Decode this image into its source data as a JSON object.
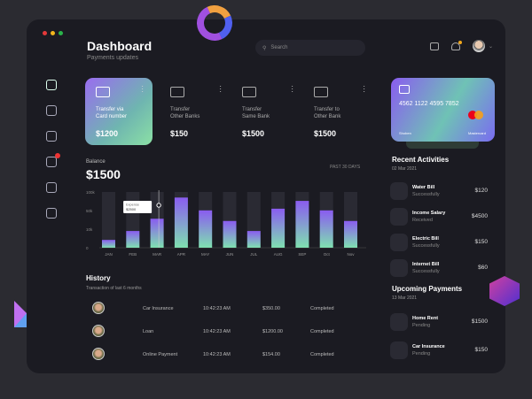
{
  "header": {
    "title": "Dashboard",
    "subtitle": "Payments updates",
    "search_placeholder": "Search"
  },
  "colors": {
    "accent": "#8a5cf0",
    "accent2": "#7fe0b0",
    "bg": "#1b1b22"
  },
  "sidebar": {
    "items": [
      {
        "icon": "home-icon"
      },
      {
        "icon": "monitor-icon"
      },
      {
        "icon": "clipboard-icon"
      },
      {
        "icon": "messages-icon",
        "badge": true
      },
      {
        "icon": "trophy-icon"
      },
      {
        "icon": "document-icon"
      }
    ]
  },
  "transfers": [
    {
      "label1": "Transfer via",
      "label2": "Card number",
      "amount": "$1200",
      "icon": "credit-card-icon"
    },
    {
      "label1": "Transfer",
      "label2": "Other Banks",
      "amount": "$150",
      "icon": "arrows-transfer-icon"
    },
    {
      "label1": "Transfer",
      "label2": "Same Bank",
      "amount": "$1500",
      "icon": "bank-icon"
    },
    {
      "label1": "Transfer to",
      "label2": "Other Bank",
      "amount": "$1500",
      "icon": "document-bank-icon"
    }
  ],
  "balance": {
    "label": "Balance",
    "amount": "$1500",
    "period": "PAST 30 DAYS"
  },
  "chart_data": {
    "type": "bar",
    "categories": [
      "JAN",
      "FEB",
      "MAR",
      "APR",
      "MAY",
      "JUN",
      "JUL",
      "AUG",
      "SEP",
      "Oct",
      "Nov"
    ],
    "values": [
      14,
      30,
      52,
      90,
      67,
      48,
      30,
      70,
      84,
      67,
      48
    ],
    "yticks": [
      "100k",
      "50k",
      "10k",
      "0"
    ],
    "ylim": [
      0,
      100
    ],
    "tooltip": {
      "label": "Expense",
      "value": "$2500",
      "category": "MAR"
    }
  },
  "history": {
    "title": "History",
    "subtitle": "Transaction of last 6 months",
    "rows": [
      {
        "name": "Car Insurance",
        "time": "10:42:23 AM",
        "amount": "$350.00",
        "status": "Completed"
      },
      {
        "name": "Loan",
        "time": "10:42:23 AM",
        "amount": "$1200.00",
        "status": "Completed"
      },
      {
        "name": "Online Payment",
        "time": "10:42:23 AM",
        "amount": "$154.00",
        "status": "Completed"
      }
    ]
  },
  "card": {
    "number": "4562 1122 4595 7852",
    "holder": "Shoben",
    "brand": "Mastercard"
  },
  "recent": {
    "title": "Recent Activities",
    "date": "02 Mar 2021",
    "items": [
      {
        "name": "Water Bill",
        "status": "Successfully",
        "amount": "$120",
        "icon": "water-icon"
      },
      {
        "name": "Income Salary",
        "status": "Received",
        "amount": "$4500",
        "icon": "inbox-icon"
      },
      {
        "name": "Electric Bill",
        "status": "Successfully",
        "amount": "$150",
        "icon": "lightning-icon"
      },
      {
        "name": "Internet Bill",
        "status": "Successfully",
        "amount": "$60",
        "icon": "wifi-icon"
      }
    ]
  },
  "upcoming": {
    "title": "Upcoming Payments",
    "date": "13 Mar 2021",
    "items": [
      {
        "name": "Home Rent",
        "status": "Pending",
        "amount": "$1500",
        "icon": "home-icon"
      },
      {
        "name": "Car Insurance",
        "status": "Pending",
        "amount": "$150",
        "icon": "car-icon"
      }
    ]
  }
}
